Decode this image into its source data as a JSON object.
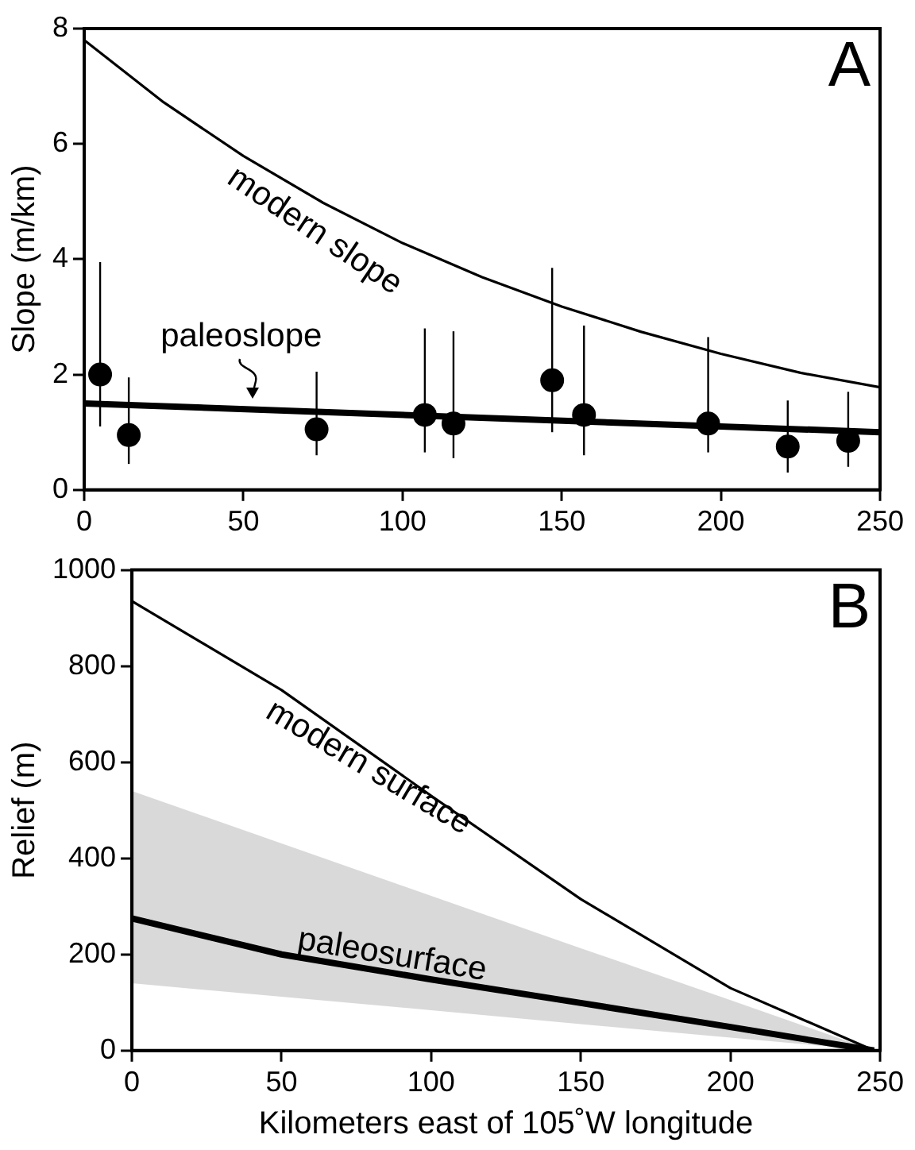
{
  "chart_data": [
    {
      "type": "scatter",
      "ylabel": "Slope (m/km)",
      "xlim": [
        0,
        250
      ],
      "xticks": [
        0,
        50,
        100,
        150,
        200,
        250
      ],
      "ylim": [
        0,
        8
      ],
      "yticks": [
        0,
        2,
        4,
        6,
        8
      ],
      "grid": false,
      "legend": false,
      "marker": "circle",
      "annotations": [
        "A"
      ],
      "series": [
        {
          "name": "modern slope",
          "type": "line",
          "marker": "none",
          "color": "#000000",
          "x": [
            0,
            25,
            50,
            75,
            100,
            125,
            150,
            175,
            200,
            225,
            250
          ],
          "values": [
            7.8,
            6.72,
            5.79,
            4.98,
            4.28,
            3.69,
            3.18,
            2.74,
            2.36,
            2.03,
            1.78
          ]
        },
        {
          "name": "paleoslope",
          "type": "line",
          "marker": "none",
          "color": "#000000",
          "x": [
            0,
            250
          ],
          "values": [
            1.5,
            1.0
          ]
        },
        {
          "type": "scatter",
          "color": "#000000",
          "x": [
            5,
            14,
            73,
            107,
            116,
            147,
            157,
            196,
            221,
            240
          ],
          "values": [
            2.0,
            0.95,
            1.05,
            1.3,
            1.15,
            1.9,
            1.3,
            1.15,
            0.75,
            0.85
          ],
          "errors": [
            [
              1.1,
              3.95
            ],
            [
              0.45,
              1.95
            ],
            [
              0.6,
              2.05
            ],
            [
              0.65,
              2.8
            ],
            [
              0.55,
              2.75
            ],
            [
              1.0,
              3.85
            ],
            [
              0.6,
              2.85
            ],
            [
              0.65,
              2.65
            ],
            [
              0.3,
              1.55
            ],
            [
              0.4,
              1.7
            ]
          ]
        }
      ]
    },
    {
      "type": "line",
      "xlabel": "Kilometers east of 105˚W longitude",
      "ylabel": "Relief (m)",
      "xlim": [
        0,
        250
      ],
      "xticks": [
        0,
        50,
        100,
        150,
        200,
        250
      ],
      "ylim": [
        0,
        1000
      ],
      "yticks": [
        0,
        200,
        400,
        600,
        800,
        1000
      ],
      "grid": false,
      "legend": false,
      "marker": "none",
      "annotations": [
        "B"
      ],
      "series": [
        {
          "name": "modern surface",
          "color": "#000000",
          "x": [
            0,
            50,
            100,
            150,
            200,
            248
          ],
          "values": [
            935,
            750,
            530,
            315,
            130,
            0
          ]
        },
        {
          "name": "paleosurface",
          "color": "#000000",
          "x": [
            0,
            50,
            100,
            150,
            200,
            248
          ],
          "values": [
            275,
            200,
            148,
            99,
            49,
            0
          ],
          "lower": [
            140,
            112,
            84,
            55,
            27,
            0
          ],
          "upper": [
            540,
            431,
            322,
            213,
            105,
            0
          ]
        }
      ]
    }
  ]
}
